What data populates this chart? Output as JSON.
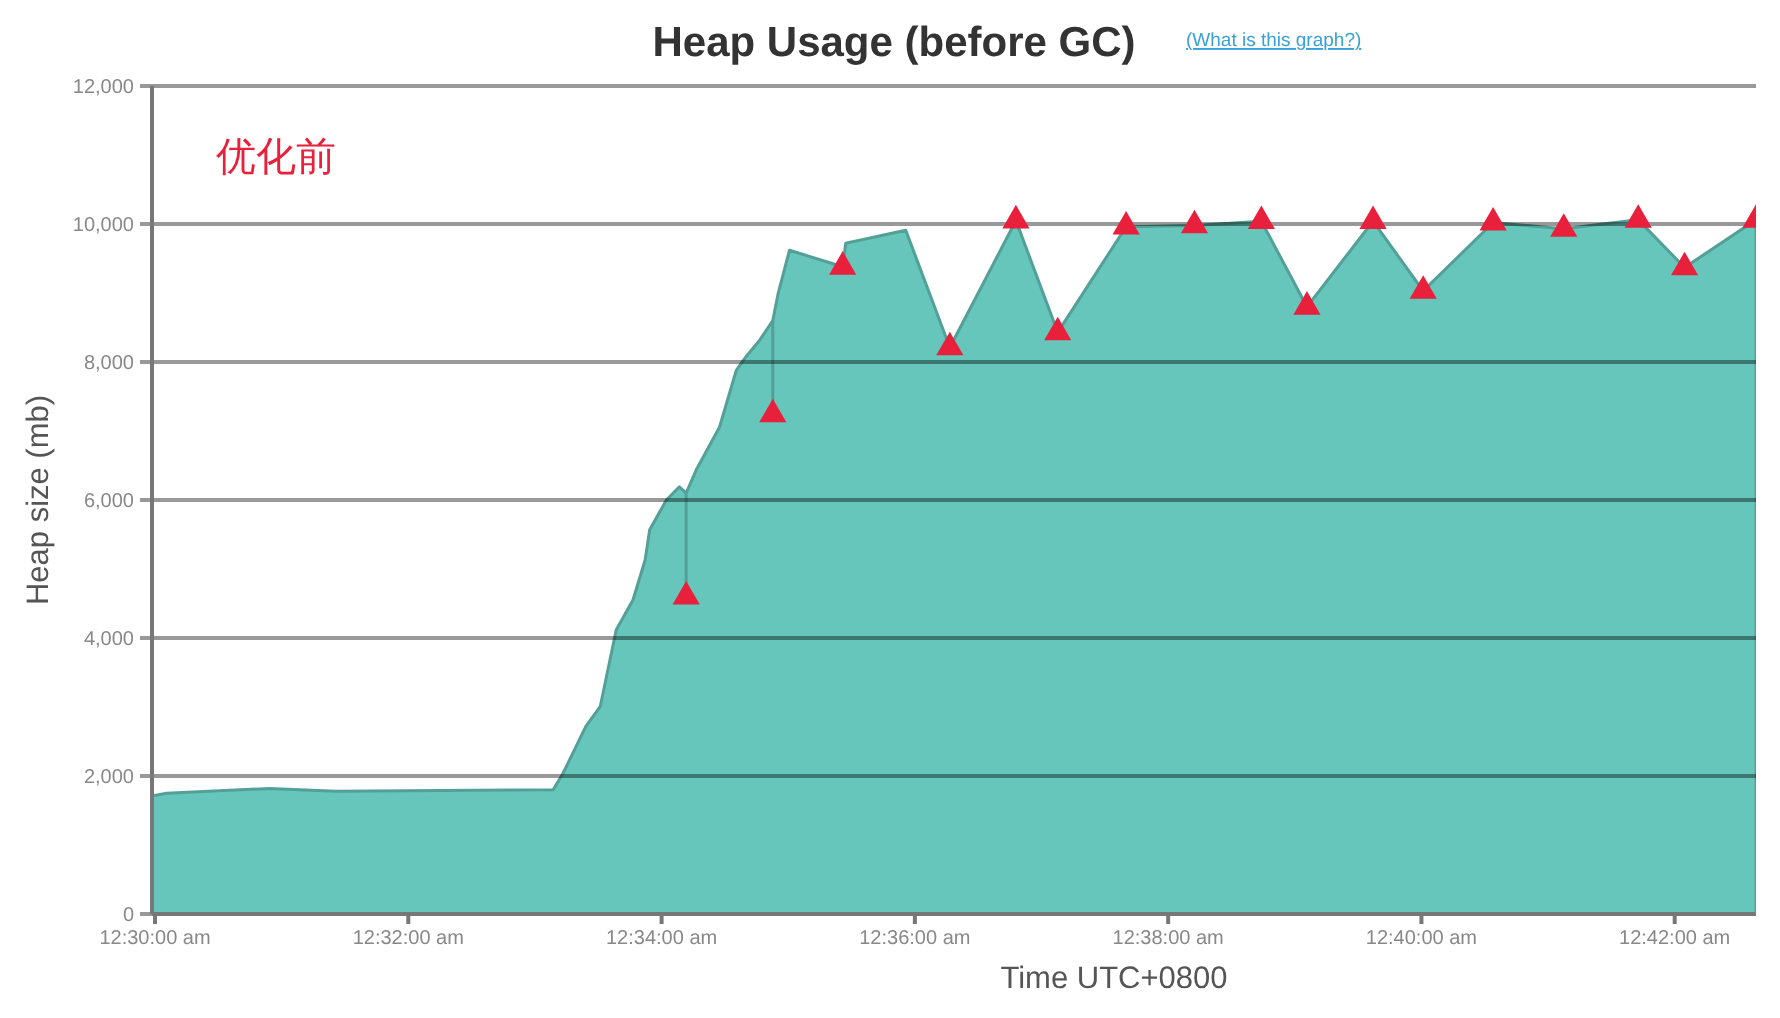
{
  "chart_data": {
    "type": "area",
    "title": "Heap Usage (before GC)",
    "subtitle": "(What is this graph?)",
    "xlabel": "Time UTC+0800",
    "ylabel": "Heap size (mb)",
    "annotations": [
      "优化前"
    ],
    "xlim": [
      0.4996,
      0.7107
    ],
    "ylim": [
      0,
      12000
    ],
    "xticks": [
      {
        "value": 0.5,
        "label": "12:30:00 am"
      },
      {
        "value": 0.533333,
        "label": "12:32:00 am"
      },
      {
        "value": 0.566667,
        "label": "12:34:00 am"
      },
      {
        "value": 0.6,
        "label": "12:36:00 am"
      },
      {
        "value": 0.633333,
        "label": "12:38:00 am"
      },
      {
        "value": 0.666667,
        "label": "12:40:00 am"
      },
      {
        "value": 0.7,
        "label": "12:42:00 am"
      }
    ],
    "yticks": [
      0,
      {
        "value": 2000,
        "label": "2,000"
      },
      {
        "value": 4000,
        "label": "4,000"
      },
      {
        "value": 6000,
        "label": "6,000"
      },
      {
        "value": 8000,
        "label": "8,000"
      },
      {
        "value": 10000,
        "label": "10,000"
      },
      {
        "value": 12000,
        "label": "12,000"
      }
    ],
    "grid": "y",
    "series": [
      {
        "color": "#66c6bb",
        "x": [
          0.4996,
          0.5015,
          0.5151,
          0.5238,
          0.5524,
          0.5537,
          0.5567,
          0.5586,
          0.5607,
          0.5629,
          0.5645,
          0.5651,
          0.5673,
          0.569,
          0.5699,
          0.5699,
          0.5699,
          0.5712,
          0.5743,
          0.5765,
          0.5778,
          0.5796,
          0.5813,
          0.5813,
          0.5813,
          0.582,
          0.5835,
          0.5905,
          0.5909,
          0.5988,
          0.6046,
          0.6133,
          0.6188,
          0.6278,
          0.6368,
          0.6456,
          0.6516,
          0.6603,
          0.6669,
          0.6761,
          0.6854,
          0.6952,
          0.7013,
          0.7107
        ],
        "values": [
          1710,
          1750,
          1820,
          1780,
          1800,
          2040,
          2720,
          3010,
          4120,
          4550,
          5130,
          5570,
          6000,
          6190,
          6100,
          4600,
          6100,
          6430,
          7060,
          7880,
          8080,
          8320,
          8600,
          7240,
          8600,
          8990,
          9620,
          9380,
          9720,
          9910,
          8210,
          10050,
          8430,
          9960,
          9980,
          10040,
          8800,
          10040,
          9030,
          10020,
          9930,
          10060,
          9370,
          10060
        ]
      },
      {
        "type": "scatter",
        "color": "#e8203c",
        "marker": "triangle",
        "x": [
          0.5699,
          0.5813,
          0.5905,
          0.6046,
          0.6133,
          0.6188,
          0.6278,
          0.6368,
          0.6456,
          0.6516,
          0.6603,
          0.6669,
          0.6761,
          0.6854,
          0.6952,
          0.7013,
          0.7107
        ],
        "values": [
          4600,
          7240,
          9380,
          8210,
          10050,
          8430,
          9960,
          9980,
          10040,
          8800,
          10040,
          9030,
          10020,
          9930,
          10060,
          9370,
          10060
        ]
      }
    ]
  }
}
